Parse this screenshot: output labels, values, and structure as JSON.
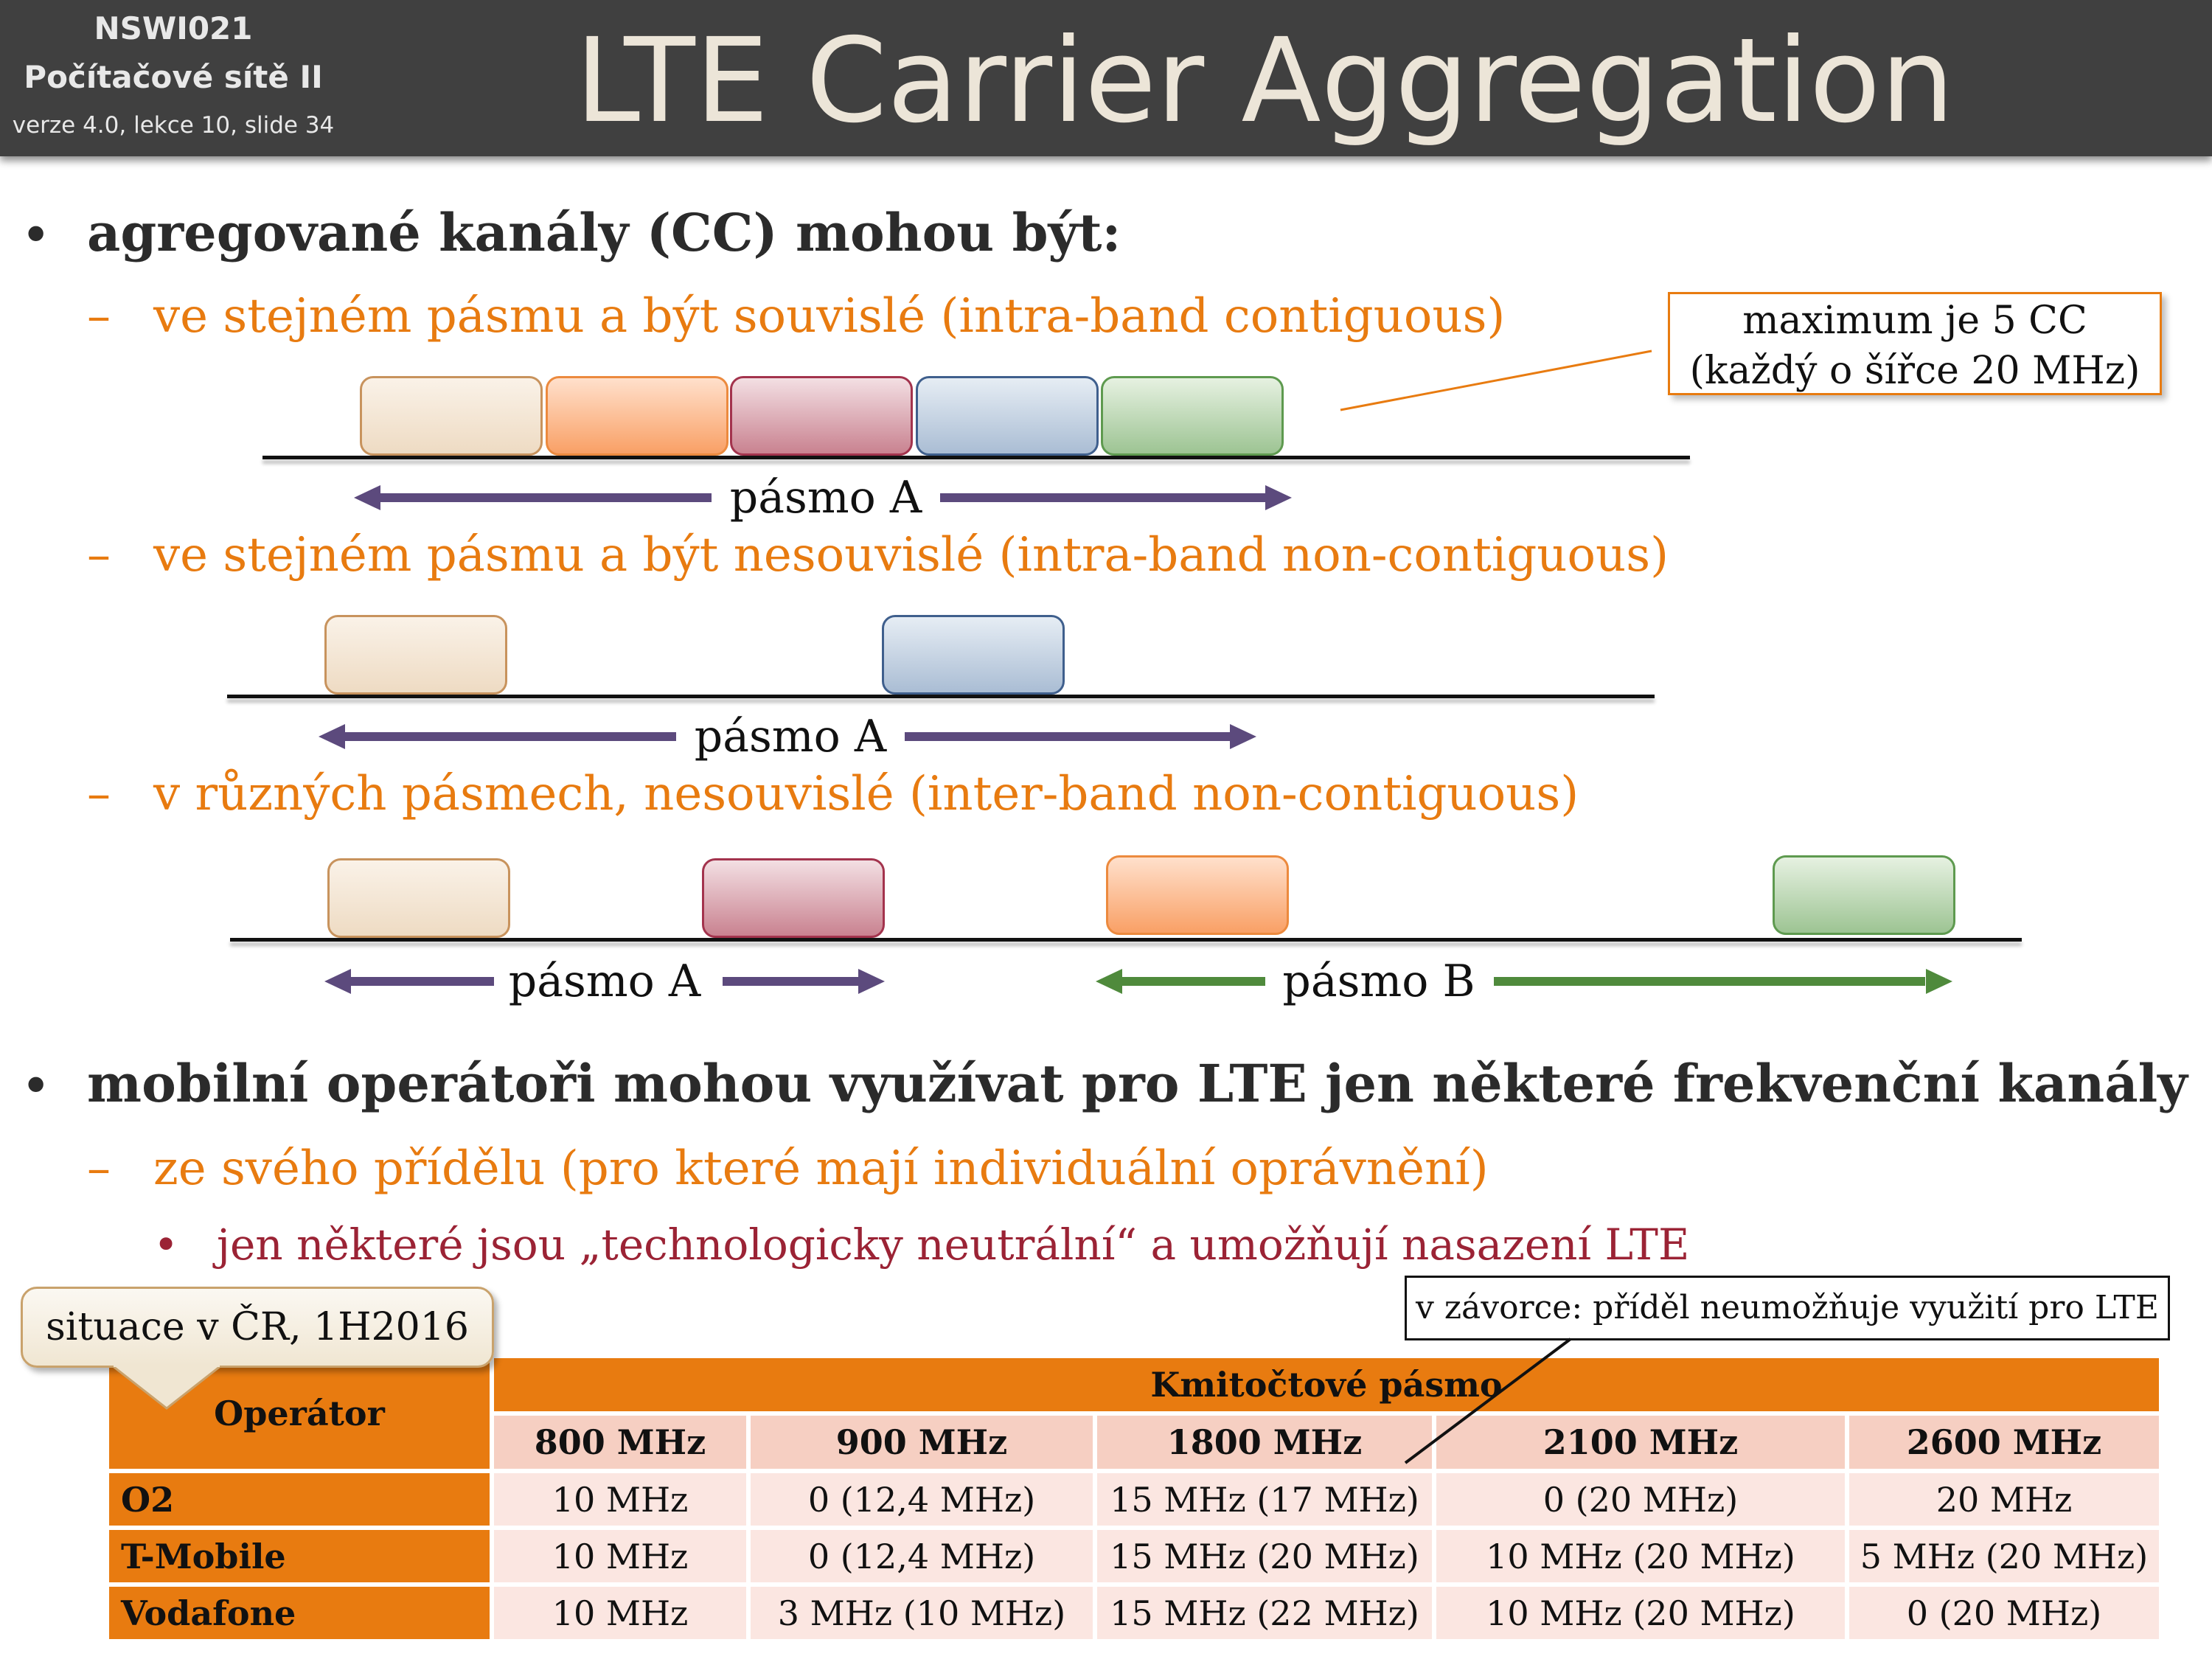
{
  "header": {
    "course_code": "NSWI021",
    "course_name": "Počítačové sítě II",
    "version": "verze 4.0, lekce  10, slide 34",
    "title": "LTE Carrier Aggregation"
  },
  "bullets": {
    "b1": "agregované kanály (CC) mohou být:",
    "b1_sub1": "ve stejném pásmu a být souvislé (intra-band contiguous)",
    "b1_sub2": "ve stejném pásmu a být nesouvislé (intra-band non-contiguous)",
    "b1_sub3": "v různých pásmech, nesouvislé (inter-band non-contiguous)",
    "b2": "mobilní operátoři mohou využívat pro LTE jen některé frekvenční kanály",
    "b2_sub1": "ze svého přídělu (pro které mají individuální oprávnění)",
    "b2_sub1_sub1": "jen některé jsou „technologicky neutrální“ a umožňují nasazení LTE",
    "bullet_char": "•",
    "dash_char": "–"
  },
  "diagrams": {
    "band_a_label": "pásmo A",
    "band_b_label": "pásmo B",
    "max_note_line1": "maximum je 5 CC",
    "max_note_line2": "(každý o šířce 20 MHz)",
    "colors": {
      "band_a_arrow": "#5c4a7d",
      "band_b_arrow": "#4f8a3c",
      "note_border": "#e87b10"
    }
  },
  "table_section": {
    "situation_label": "situace v ČR, 1H2016",
    "bracket_note": "v závorce: příděl neumožňuje využití pro LTE",
    "header_operator": "Operátor",
    "header_band": "Kmitočtové pásmo",
    "columns": [
      "800 MHz",
      "900 MHz",
      "1800 MHz",
      "2100 MHz",
      "2600 MHz"
    ],
    "rows": [
      {
        "operator": "O2",
        "values": [
          "10 MHz",
          "0 (12,4 MHz)",
          "15 MHz (17 MHz)",
          "0 (20 MHz)",
          "20 MHz"
        ]
      },
      {
        "operator": "T-Mobile",
        "values": [
          "10 MHz",
          "0 (12,4 MHz)",
          "15 MHz (20 MHz)",
          "10 MHz (20 MHz)",
          "5 MHz (20 MHz)"
        ]
      },
      {
        "operator": "Vodafone",
        "values": [
          "10 MHz",
          "3 MHz (10 MHz)",
          "15 MHz (22 MHz)",
          "10 MHz (20 MHz)",
          "0 (20 MHz)"
        ]
      }
    ]
  }
}
